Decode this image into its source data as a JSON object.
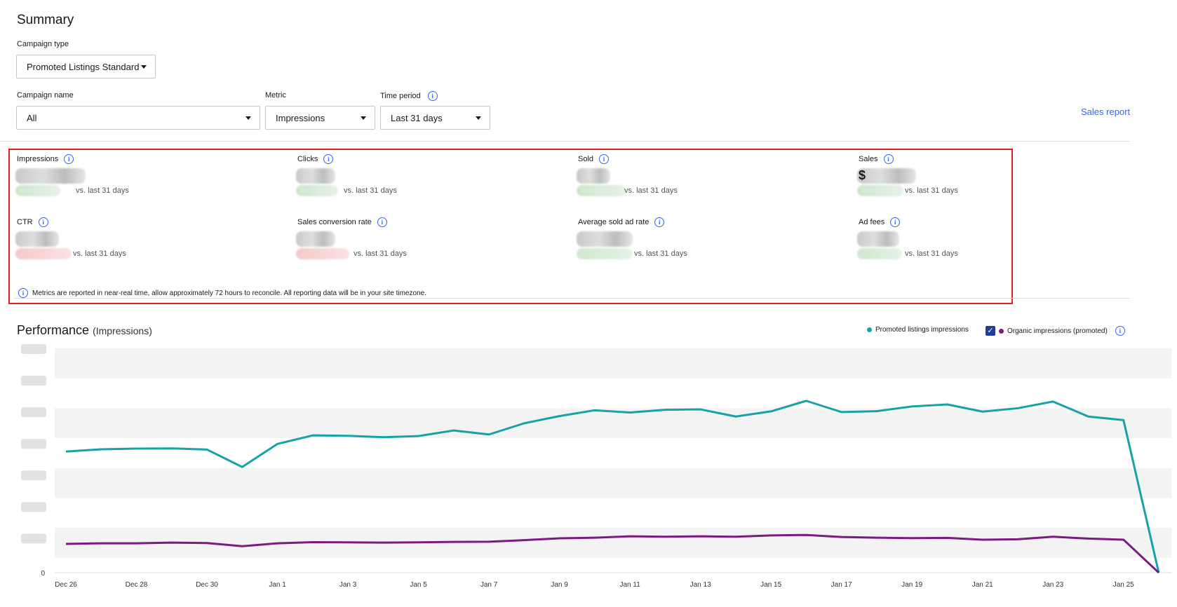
{
  "summary": {
    "title": "Summary",
    "campaign_type_label": "Campaign type",
    "campaign_type_value": "Promoted Listings Standard",
    "campaign_name_label": "Campaign name",
    "campaign_name_value": "All",
    "metric_label": "Metric",
    "metric_value": "Impressions",
    "time_period_label": "Time period",
    "time_period_value": "Last 31 days",
    "sales_report_link": "Sales report"
  },
  "metrics": [
    {
      "label": "Impressions",
      "vs": "vs. last 31 days"
    },
    {
      "label": "Clicks",
      "vs": "vs. last 31 days"
    },
    {
      "label": "Sold",
      "vs": "vs. last 31 days"
    },
    {
      "label": "Sales",
      "vs": "vs. last 31 days",
      "prefix": "$"
    },
    {
      "label": "CTR",
      "vs": "vs. last 31 days"
    },
    {
      "label": "Sales conversion rate",
      "vs": "vs. last 31 days"
    },
    {
      "label": "Average sold ad rate",
      "vs": "vs. last 31 days"
    },
    {
      "label": "Ad fees",
      "vs": "vs. last 31 days"
    }
  ],
  "note": "Metrics are reported in near-real time, allow approximately 72 hours to reconcile. All reporting data will be in your site timezone.",
  "performance": {
    "title": "Performance",
    "subtitle": "(Impressions)",
    "legend_promoted": "Promoted listings impressions",
    "legend_organic": "Organic impressions (promoted)"
  },
  "colors": {
    "promoted": "#17a2a8",
    "organic": "#7b1a80",
    "accent": "#3665f3",
    "highlight_box": "#e0211d"
  },
  "chart_data": {
    "type": "line",
    "y_tick_zero": "0",
    "grid": true,
    "legend_placement": "top-right",
    "x_tick_labels": [
      "Dec 26",
      "Dec 28",
      "Dec 30",
      "Jan 1",
      "Jan 3",
      "Jan 5",
      "Jan 7",
      "Jan 9",
      "Jan 11",
      "Jan 13",
      "Jan 15",
      "Jan 17",
      "Jan 19",
      "Jan 21",
      "Jan 23",
      "Jan 25"
    ],
    "x": [
      "Dec 26",
      "Dec 27",
      "Dec 28",
      "Dec 29",
      "Dec 30",
      "Dec 31",
      "Jan 1",
      "Jan 2",
      "Jan 3",
      "Jan 4",
      "Jan 5",
      "Jan 6",
      "Jan 7",
      "Jan 8",
      "Jan 9",
      "Jan 10",
      "Jan 11",
      "Jan 12",
      "Jan 13",
      "Jan 14",
      "Jan 15",
      "Jan 16",
      "Jan 17",
      "Jan 18",
      "Jan 19",
      "Jan 20",
      "Jan 21",
      "Jan 22",
      "Jan 23",
      "Jan 24",
      "Jan 25",
      "Jan 26"
    ],
    "ylim": [
      0,
      100
    ],
    "series": [
      {
        "name": "Promoted listings impressions",
        "color": "#17a2a8",
        "values": [
          54,
          55,
          55.3,
          55.4,
          54.9,
          47.1,
          57.4,
          61.2,
          61,
          60.4,
          60.9,
          63.4,
          61.6,
          66.6,
          69.8,
          72.4,
          71.4,
          72.6,
          72.8,
          69.6,
          71.9,
          76.6,
          71.6,
          72,
          74.1,
          75,
          71.8,
          73.3,
          76.3,
          69.6,
          68,
          0
        ]
      },
      {
        "name": "Organic impressions (promoted)",
        "color": "#7b1a80",
        "values": [
          12.8,
          13.1,
          13.1,
          13.4,
          13.2,
          11.8,
          13.1,
          13.6,
          13.5,
          13.4,
          13.5,
          13.7,
          13.8,
          14.5,
          15.3,
          15.6,
          16.2,
          16,
          16.2,
          16,
          16.6,
          16.8,
          15.9,
          15.6,
          15.4,
          15.5,
          14.7,
          14.9,
          16,
          15.2,
          14.7,
          0
        ]
      }
    ]
  }
}
